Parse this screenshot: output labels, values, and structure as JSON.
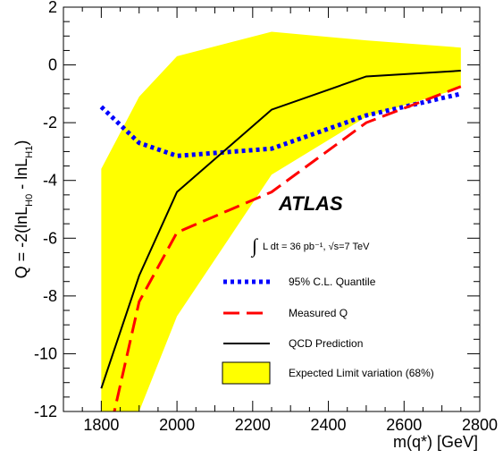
{
  "chart_data": {
    "type": "line",
    "experiment_label": "ATLAS",
    "luminosity_label": {
      "integral": "∫",
      "text": "L dt = 36 pb⁻¹, √s=7 TeV"
    },
    "xlabel": "m(q*) [GeV]",
    "ylabel": "Q = -2(lnL_H0 - lnL_H1)",
    "ylabel_parts": [
      "Q = -2(lnL",
      "H0",
      " - lnL",
      "H1",
      ")"
    ],
    "xlim": [
      1700,
      2800
    ],
    "ylim": [
      -12,
      2
    ],
    "x_ticks": [
      1800,
      2000,
      2200,
      2400,
      2600,
      2800
    ],
    "y_ticks": [
      -12,
      -10,
      -8,
      -6,
      -4,
      -2,
      0,
      2
    ],
    "band": {
      "name": "Expected Limit variation (68%)",
      "color": "#ffff00",
      "x": [
        1800,
        1900,
        2000,
        2250,
        2500,
        2750
      ],
      "upper": [
        -3.6,
        -1.1,
        0.3,
        1.15,
        0.85,
        0.6
      ],
      "lower": [
        -12.0,
        -12.0,
        -8.7,
        -3.8,
        -1.8,
        -0.8
      ]
    },
    "series": [
      {
        "name": "95% C.L. Quantile",
        "color": "#0000ff",
        "style": "dotted",
        "x": [
          1800,
          1900,
          2000,
          2250,
          2500,
          2750
        ],
        "values": [
          -1.45,
          -2.7,
          -3.15,
          -2.9,
          -1.75,
          -1.0
        ]
      },
      {
        "name": "Measured Q",
        "color": "#ff0000",
        "style": "dashed",
        "x": [
          1800,
          1900,
          2000,
          2250,
          2500,
          2750
        ],
        "values": [
          -14.0,
          -8.2,
          -5.8,
          -4.4,
          -2.0,
          -0.75
        ]
      },
      {
        "name": "QCD Prediction",
        "color": "#000000",
        "style": "solid",
        "x": [
          1800,
          1900,
          2000,
          2250,
          2500,
          2750
        ],
        "values": [
          -11.2,
          -7.3,
          -4.4,
          -1.55,
          -0.4,
          -0.2
        ]
      }
    ],
    "legend_placement": "bottom-right"
  }
}
